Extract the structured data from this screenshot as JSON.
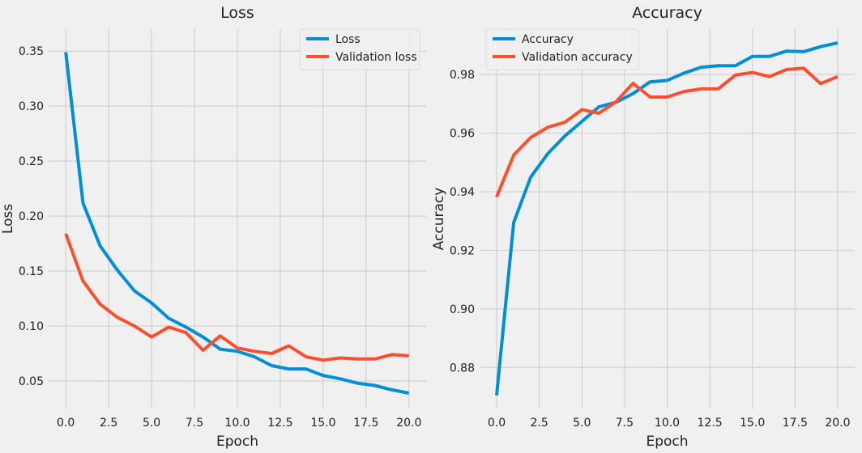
{
  "chart_data": [
    {
      "type": "line",
      "title": "Loss",
      "xlabel": "Epoch",
      "ylabel": "Loss",
      "xlim": [
        -1,
        21
      ],
      "ylim": [
        0.025,
        0.37
      ],
      "xticks": [
        0.0,
        2.5,
        5.0,
        7.5,
        10.0,
        12.5,
        15.0,
        17.5,
        20.0
      ],
      "xtick_labels": [
        "0.0",
        "2.5",
        "5.0",
        "7.5",
        "10.0",
        "12.5",
        "15.0",
        "17.5",
        "20.0"
      ],
      "yticks": [
        0.05,
        0.1,
        0.15,
        0.2,
        0.25,
        0.3,
        0.35
      ],
      "ytick_labels": [
        "0.05",
        "0.10",
        "0.15",
        "0.20",
        "0.25",
        "0.30",
        "0.35"
      ],
      "grid": true,
      "legend_position": "upper right",
      "x": [
        0,
        1,
        2,
        3,
        4,
        5,
        6,
        7,
        8,
        9,
        10,
        11,
        12,
        13,
        14,
        15,
        16,
        17,
        18,
        19,
        20
      ],
      "series": [
        {
          "name": "Loss",
          "color": "#008fd5",
          "values": [
            0.349,
            0.212,
            0.173,
            0.151,
            0.132,
            0.121,
            0.107,
            0.099,
            0.09,
            0.079,
            0.077,
            0.072,
            0.064,
            0.061,
            0.061,
            0.055,
            0.052,
            0.048,
            0.046,
            0.042,
            0.039
          ]
        },
        {
          "name": "Validation loss",
          "color": "#fc4f30",
          "values": [
            0.184,
            0.141,
            0.12,
            0.108,
            0.1,
            0.09,
            0.099,
            0.094,
            0.078,
            0.091,
            0.08,
            0.077,
            0.075,
            0.082,
            0.072,
            0.069,
            0.071,
            0.07,
            0.07,
            0.074,
            0.073
          ]
        }
      ]
    },
    {
      "type": "line",
      "title": "Accuracy",
      "xlabel": "Epoch",
      "ylabel": "Accuracy",
      "xlim": [
        -1,
        21
      ],
      "ylim": [
        0.866,
        0.9955
      ],
      "xticks": [
        0.0,
        2.5,
        5.0,
        7.5,
        10.0,
        12.5,
        15.0,
        17.5,
        20.0
      ],
      "xtick_labels": [
        "0.0",
        "2.5",
        "5.0",
        "7.5",
        "10.0",
        "12.5",
        "15.0",
        "17.5",
        "20.0"
      ],
      "yticks": [
        0.88,
        0.9,
        0.92,
        0.94,
        0.96,
        0.98
      ],
      "ytick_labels": [
        "0.88",
        "0.90",
        "0.92",
        "0.94",
        "0.96",
        "0.98"
      ],
      "grid": true,
      "legend_position": "upper left",
      "x": [
        0,
        1,
        2,
        3,
        4,
        5,
        6,
        7,
        8,
        9,
        10,
        11,
        12,
        13,
        14,
        15,
        16,
        17,
        18,
        19,
        20
      ],
      "series": [
        {
          "name": "Accuracy",
          "color": "#008fd5",
          "values": [
            0.8705,
            0.9295,
            0.945,
            0.953,
            0.959,
            0.964,
            0.969,
            0.9705,
            0.9735,
            0.9775,
            0.978,
            0.9805,
            0.9825,
            0.983,
            0.983,
            0.9862,
            0.9862,
            0.988,
            0.9878,
            0.9895,
            0.9908
          ]
        },
        {
          "name": "Validation accuracy",
          "color": "#fc4f30",
          "values": [
            0.9382,
            0.9525,
            0.9585,
            0.962,
            0.9637,
            0.968,
            0.9668,
            0.9707,
            0.977,
            0.9723,
            0.9723,
            0.9742,
            0.9751,
            0.9751,
            0.9798,
            0.9807,
            0.9793,
            0.9817,
            0.9822,
            0.9769,
            0.9793
          ]
        }
      ]
    }
  ]
}
